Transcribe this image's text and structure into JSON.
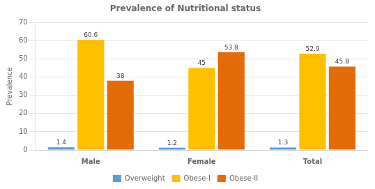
{
  "chart_data": {
    "type": "bar",
    "title": "Prevalence of Nutritional status",
    "ylabel": "Prevalence",
    "categories": [
      "Male",
      "Female",
      "Total"
    ],
    "series": [
      {
        "name": "Overweight",
        "color": "#5B9BD5",
        "values": [
          1.4,
          1.2,
          1.3
        ]
      },
      {
        "name": "Obese-I",
        "color": "#FFC000",
        "values": [
          60.6,
          45,
          52.9
        ]
      },
      {
        "name": "Obese-II",
        "color": "#E36C09",
        "values": [
          38,
          53.8,
          45.8
        ]
      }
    ],
    "ylim": [
      0,
      70
    ],
    "yticks": [
      0,
      10,
      20,
      30,
      40,
      50,
      60,
      70
    ],
    "grid": true,
    "legend": "bottom",
    "data_labels": true
  }
}
